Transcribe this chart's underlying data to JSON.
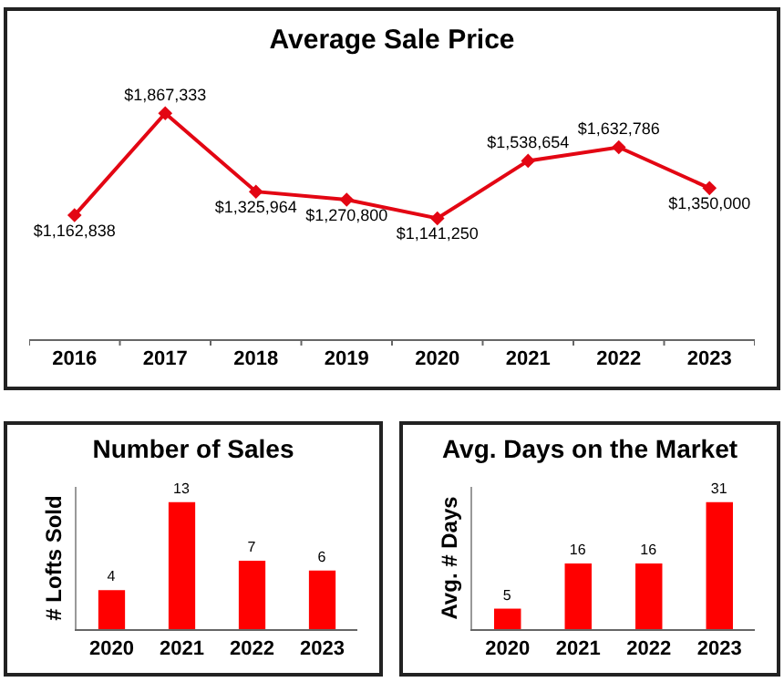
{
  "chart_data": [
    {
      "type": "line",
      "title": "Average Sale Price",
      "categories": [
        "2016",
        "2017",
        "2018",
        "2019",
        "2020",
        "2021",
        "2022",
        "2023"
      ],
      "series": [
        {
          "color": "#e30613",
          "values": [
            1162838,
            1867333,
            1325964,
            1270800,
            1141250,
            1538654,
            1632786,
            1350000
          ],
          "value_labels": [
            "$1,162,838",
            "$1,867,333",
            "$1,325,964",
            "$1,270,800",
            "$1,141,250",
            "$1,538,654",
            "$1,632,786",
            "$1,350,000"
          ]
        }
      ],
      "marker": "diamond",
      "line_style": "solid",
      "legend": false,
      "grid": false
    },
    {
      "type": "bar",
      "title": "Number of Sales",
      "ylabel": "# Lofts Sold",
      "categories": [
        "2020",
        "2021",
        "2022",
        "2023"
      ],
      "series": [
        {
          "color": "#ff0000",
          "values": [
            4,
            13,
            7,
            6
          ]
        }
      ],
      "data_labels": true,
      "legend": false,
      "grid": false,
      "tick_labels": "x"
    },
    {
      "type": "bar",
      "title": "Avg. Days on the Market",
      "ylabel": "Avg. # Days",
      "categories": [
        "2020",
        "2021",
        "2022",
        "2023"
      ],
      "series": [
        {
          "color": "#ff0000",
          "values": [
            5,
            16,
            16,
            31
          ]
        }
      ],
      "data_labels": true,
      "legend": false,
      "grid": false,
      "tick_labels": "x"
    }
  ]
}
